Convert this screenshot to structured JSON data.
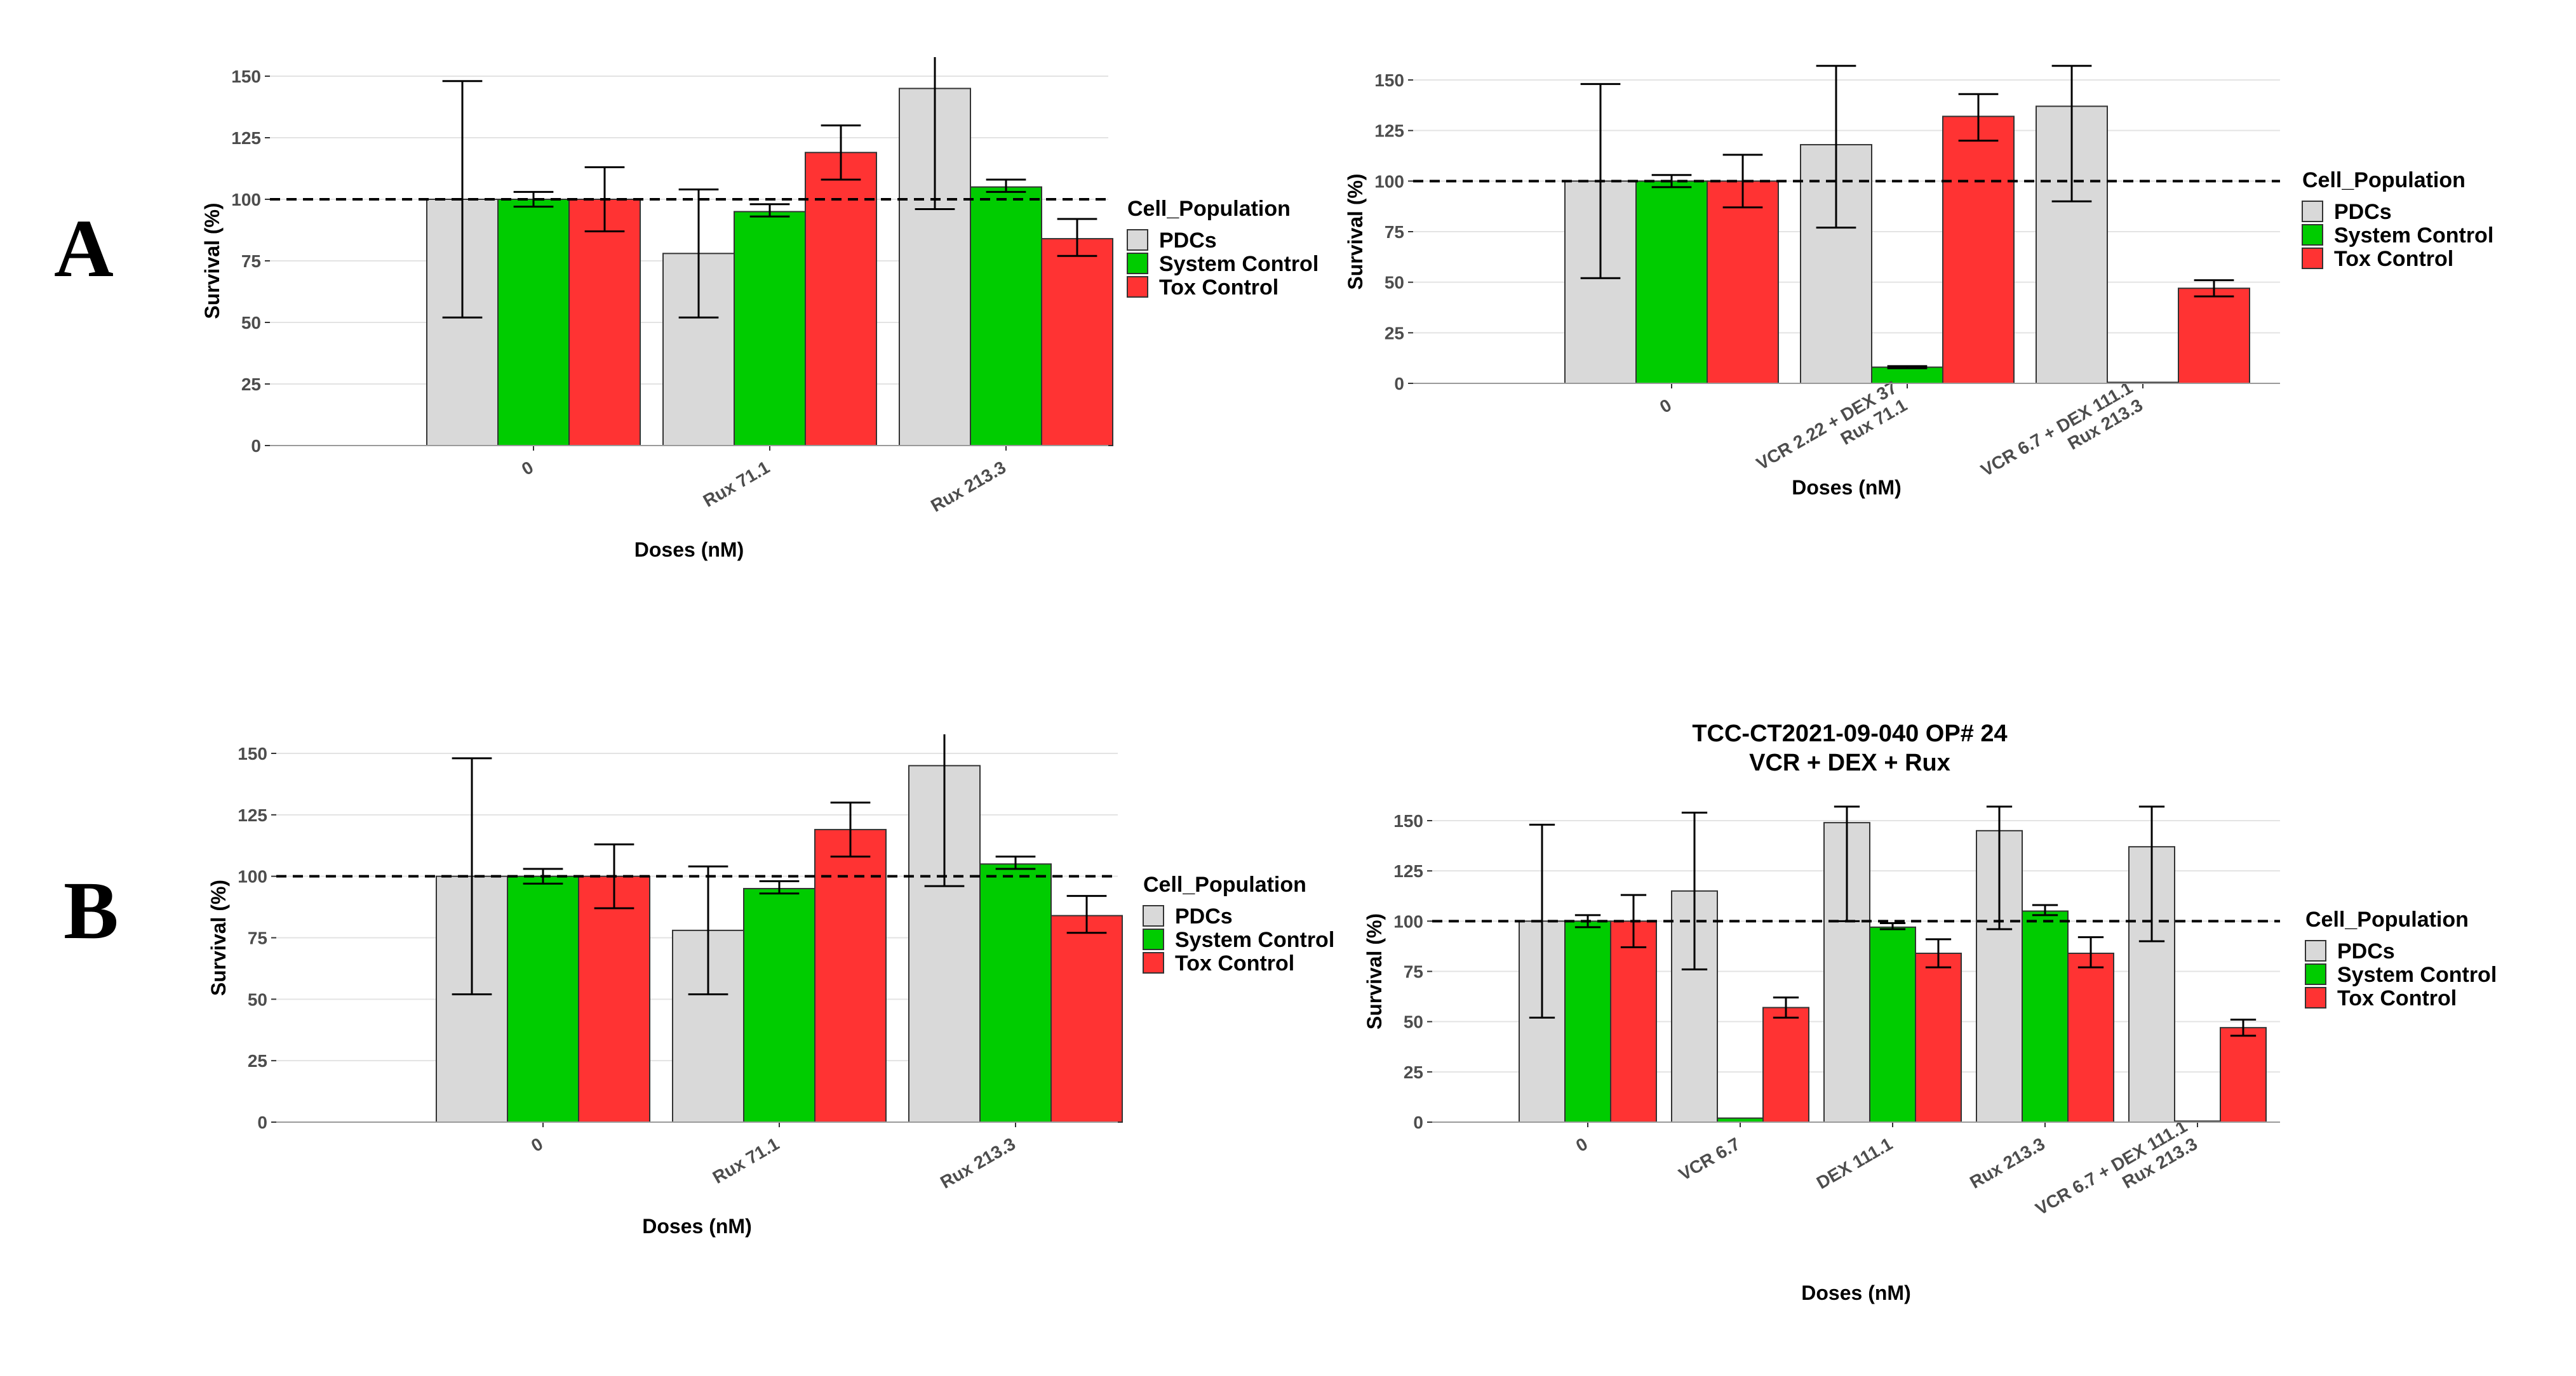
{
  "panel_labels": [
    "A",
    "B"
  ],
  "colors": {
    "PDCs": "#d9d9d9",
    "System Control": "#00cc00",
    "Tox Control": "#ff3333"
  },
  "chart_data": [
    {
      "type": "bar",
      "panel": "A",
      "title": [],
      "xlabel": "Doses (nM)",
      "ylabel": "Survival (%)",
      "ylim": [
        0,
        150
      ],
      "yticks": [
        0,
        25,
        50,
        75,
        100,
        125,
        150
      ],
      "reference_line": 100,
      "legend_title": "Cell_Population",
      "categories": [
        [
          "0"
        ],
        [
          "Rux 71.1"
        ],
        [
          "Rux 213.3"
        ]
      ],
      "series": [
        {
          "name": "PDCs",
          "values": [
            100,
            78,
            145
          ],
          "err_low": [
            52,
            52,
            96
          ],
          "err_high": [
            148,
            104,
            158
          ]
        },
        {
          "name": "System Control",
          "values": [
            100,
            95,
            105
          ],
          "err_low": [
            97,
            93,
            103
          ],
          "err_high": [
            103,
            98,
            108
          ]
        },
        {
          "name": "Tox Control",
          "values": [
            100,
            119,
            84
          ],
          "err_low": [
            87,
            108,
            77
          ],
          "err_high": [
            113,
            130,
            92
          ]
        }
      ]
    },
    {
      "type": "bar",
      "panel": "A",
      "title": [],
      "xlabel": "Doses (nM)",
      "ylabel": "Survival (%)",
      "ylim": [
        0,
        150
      ],
      "yticks": [
        0,
        25,
        50,
        75,
        100,
        125,
        150
      ],
      "reference_line": 100,
      "legend_title": "Cell_Population",
      "categories": [
        [
          "0"
        ],
        [
          "VCR 2.22 + DEX 37",
          "Rux 71.1"
        ],
        [
          "VCR 6.7 + DEX 111.1",
          "Rux 213.3"
        ]
      ],
      "series": [
        {
          "name": "PDCs",
          "values": [
            100,
            118,
            137
          ],
          "err_low": [
            52,
            77,
            90
          ],
          "err_high": [
            148,
            157,
            157
          ]
        },
        {
          "name": "System Control",
          "values": [
            100,
            8,
            0.5
          ],
          "err_low": [
            97,
            7.5,
            0.5
          ],
          "err_high": [
            103,
            8.5,
            0.5
          ]
        },
        {
          "name": "Tox Control",
          "values": [
            100,
            132,
            47
          ],
          "err_low": [
            87,
            120,
            43
          ],
          "err_high": [
            113,
            143,
            51
          ]
        }
      ]
    },
    {
      "type": "bar",
      "panel": "B",
      "title": [],
      "xlabel": "Doses (nM)",
      "ylabel": "Survival (%)",
      "ylim": [
        0,
        150
      ],
      "yticks": [
        0,
        25,
        50,
        75,
        100,
        125,
        150
      ],
      "reference_line": 100,
      "legend_title": "Cell_Population",
      "categories": [
        [
          "0"
        ],
        [
          "Rux 71.1"
        ],
        [
          "Rux 213.3"
        ]
      ],
      "series": [
        {
          "name": "PDCs",
          "values": [
            100,
            78,
            145
          ],
          "err_low": [
            52,
            52,
            96
          ],
          "err_high": [
            148,
            104,
            158
          ]
        },
        {
          "name": "System Control",
          "values": [
            100,
            95,
            105
          ],
          "err_low": [
            97,
            93,
            103
          ],
          "err_high": [
            103,
            98,
            108
          ]
        },
        {
          "name": "Tox Control",
          "values": [
            100,
            119,
            84
          ],
          "err_low": [
            87,
            108,
            77
          ],
          "err_high": [
            113,
            130,
            92
          ]
        }
      ]
    },
    {
      "type": "bar",
      "panel": "B",
      "title": [
        "TCC-CT2021-09-040  OP# 24",
        "VCR + DEX + Rux"
      ],
      "xlabel": "Doses (nM)",
      "ylabel": "Survival (%)",
      "ylim": [
        0,
        150
      ],
      "yticks": [
        0,
        25,
        50,
        75,
        100,
        125,
        150
      ],
      "reference_line": 100,
      "legend_title": "Cell_Population",
      "categories": [
        [
          "0"
        ],
        [
          "VCR 6.7"
        ],
        [
          "DEX 111.1"
        ],
        [
          "Rux 213.3"
        ],
        [
          "VCR 6.7 + DEX 111.1",
          "Rux 213.3"
        ]
      ],
      "series": [
        {
          "name": "PDCs",
          "values": [
            100,
            115,
            149,
            145,
            137
          ],
          "err_low": [
            52,
            76,
            100,
            96,
            90
          ],
          "err_high": [
            148,
            154,
            157,
            157,
            157
          ]
        },
        {
          "name": "System Control",
          "values": [
            100,
            2,
            97,
            105,
            0.5
          ],
          "err_low": [
            97,
            2,
            96,
            103,
            0.5
          ],
          "err_high": [
            103,
            2,
            99,
            108,
            0.5
          ]
        },
        {
          "name": "Tox Control",
          "values": [
            100,
            57,
            84,
            84,
            47
          ],
          "err_low": [
            87,
            52,
            77,
            77,
            43
          ],
          "err_high": [
            113,
            62,
            91,
            92,
            51
          ]
        }
      ]
    }
  ]
}
